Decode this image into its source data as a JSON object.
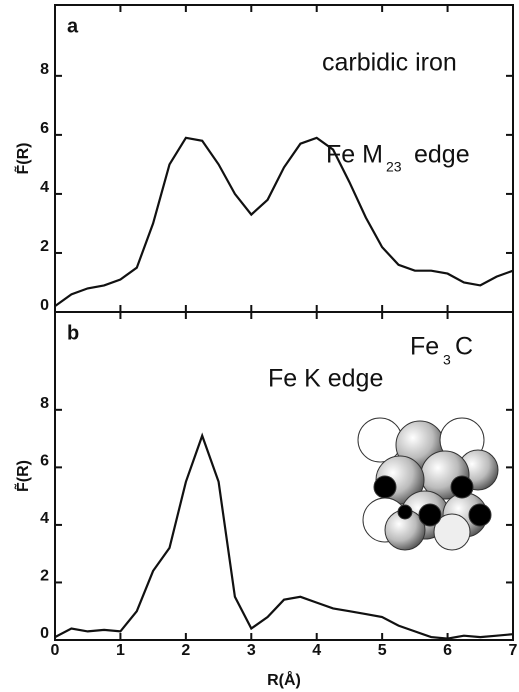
{
  "chart_data": [
    {
      "type": "line",
      "panel_label": "a",
      "ylabel": "F̃(R)",
      "annotations": [
        "carbidic iron",
        "Fe M",
        "23",
        "edge"
      ],
      "x": [
        0,
        0.25,
        0.5,
        0.75,
        1,
        1.25,
        1.5,
        1.75,
        2,
        2.25,
        2.5,
        2.75,
        3,
        3.25,
        3.5,
        3.75,
        4,
        4.25,
        4.5,
        4.75,
        5,
        5.25,
        5.5,
        5.75,
        6,
        6.25,
        6.5,
        6.75,
        7
      ],
      "series": [
        {
          "color": "#111111",
          "values": [
            0.2,
            0.6,
            0.8,
            0.9,
            1.1,
            1.5,
            3.0,
            5.0,
            5.9,
            5.8,
            5.0,
            4.0,
            3.3,
            3.8,
            4.9,
            5.7,
            5.9,
            5.5,
            4.4,
            3.2,
            2.2,
            1.6,
            1.4,
            1.4,
            1.3,
            1.0,
            0.9,
            1.2,
            1.4
          ]
        }
      ],
      "xlim": [
        0,
        7
      ],
      "xticks": [
        0,
        1,
        2,
        3,
        4,
        5,
        6,
        7
      ],
      "ylim": [
        0,
        10.4
      ],
      "yticks": [
        0,
        2,
        4,
        6,
        8
      ]
    },
    {
      "type": "line",
      "panel_label": "b",
      "ylabel": "F̃(R)",
      "xlabel": "R(Å)",
      "annotations": [
        "Fe",
        "3",
        "C",
        "Fe  K edge"
      ],
      "x": [
        0,
        0.25,
        0.5,
        0.75,
        1,
        1.25,
        1.5,
        1.75,
        2,
        2.25,
        2.5,
        2.75,
        3,
        3.25,
        3.5,
        3.75,
        4,
        4.25,
        4.5,
        4.75,
        5,
        5.25,
        5.5,
        5.75,
        6,
        6.25,
        6.5,
        6.75,
        7
      ],
      "series": [
        {
          "color": "#111111",
          "values": [
            0.1,
            0.4,
            0.3,
            0.35,
            0.3,
            1.0,
            2.4,
            3.2,
            5.5,
            7.1,
            5.5,
            1.5,
            0.4,
            0.8,
            1.4,
            1.5,
            1.3,
            1.1,
            1.0,
            0.9,
            0.8,
            0.5,
            0.3,
            0.1,
            0.05,
            0.15,
            0.1,
            0.15,
            0.2
          ]
        }
      ],
      "xlim": [
        0,
        7
      ],
      "xticks": [
        0,
        1,
        2,
        3,
        4,
        5,
        6,
        7
      ],
      "ylim": [
        0,
        11.4
      ],
      "yticks": [
        0,
        2,
        4,
        6,
        8
      ]
    }
  ]
}
